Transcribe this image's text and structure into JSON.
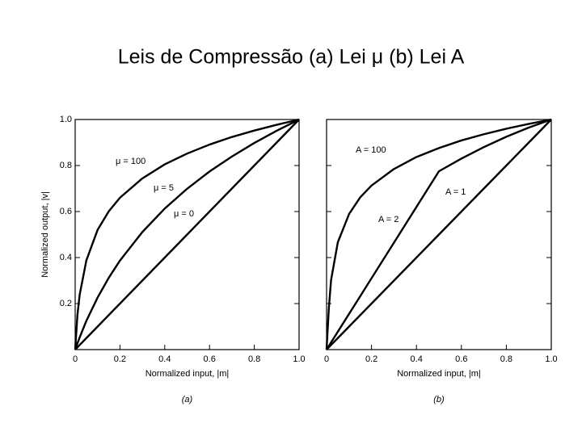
{
  "title": "Leis de Compressão (a) Lei μ  (b) Lei A",
  "chart_data": [
    {
      "type": "line",
      "caption": "(a)",
      "xlabel": "Normalized input, |m|",
      "ylabel": "Normalized output, |v|",
      "x": [
        0,
        0.01,
        0.02,
        0.05,
        0.1,
        0.15,
        0.2,
        0.3,
        0.4,
        0.5,
        0.6,
        0.7,
        0.8,
        0.9,
        1
      ],
      "series": [
        {
          "name": "μ = 100",
          "color": "#000000",
          "values": [
            0,
            0.15,
            0.238,
            0.388,
            0.52,
            0.601,
            0.66,
            0.744,
            0.805,
            0.852,
            0.891,
            0.924,
            0.952,
            0.977,
            1
          ]
        },
        {
          "name": "μ = 5",
          "color": "#000000",
          "values": [
            0,
            0.027,
            0.053,
            0.125,
            0.226,
            0.312,
            0.387,
            0.511,
            0.613,
            0.699,
            0.774,
            0.839,
            0.898,
            0.951,
            1
          ]
        },
        {
          "name": "μ = 0",
          "color": "#000000",
          "values": [
            0,
            0.01,
            0.02,
            0.05,
            0.1,
            0.15,
            0.2,
            0.3,
            0.4,
            0.5,
            0.6,
            0.7,
            0.8,
            0.9,
            1
          ]
        }
      ],
      "xlim": [
        0,
        1
      ],
      "ylim": [
        0,
        1
      ],
      "xticks": [
        0,
        0.2,
        0.4,
        0.6,
        0.8,
        {
          "value": 1,
          "label": "1.0"
        }
      ],
      "yticks": [
        0.2,
        0.4,
        0.6,
        0.8,
        {
          "value": 1,
          "label": "1.0"
        }
      ],
      "ytick_labels": true
    },
    {
      "type": "line",
      "caption": "(b)",
      "xlabel": "Normalized input, |m|",
      "x": [
        0,
        0.01,
        0.02,
        0.05,
        0.1,
        0.15,
        0.2,
        0.3,
        0.4,
        0.5,
        0.6,
        0.7,
        0.8,
        0.9,
        1
      ],
      "series": [
        {
          "name": "A = 100",
          "color": "#000000",
          "values": [
            0,
            0.178,
            0.302,
            0.466,
            0.589,
            0.662,
            0.713,
            0.785,
            0.837,
            0.876,
            0.909,
            0.936,
            0.96,
            0.981,
            1
          ]
        },
        {
          "name": "A = 1",
          "color": "#000000",
          "values": [
            0,
            0.01,
            0.02,
            0.05,
            0.1,
            0.15,
            0.2,
            0.3,
            0.4,
            0.5,
            0.6,
            0.7,
            0.8,
            0.9,
            1
          ]
        },
        {
          "name": "A = 2",
          "color": "#000000",
          "values": [
            0,
            0.0155,
            0.031,
            0.0775,
            0.155,
            0.2325,
            0.31,
            0.465,
            0.62,
            0.775,
            0.83,
            0.88,
            0.925,
            0.965,
            1
          ]
        }
      ],
      "xlim": [
        0,
        1
      ],
      "ylim": [
        0,
        1
      ],
      "xticks": [
        0,
        0.2,
        0.4,
        0.6,
        0.8,
        {
          "value": 1,
          "label": "1.0"
        }
      ],
      "yticks": [
        0.2,
        0.4,
        0.6,
        0.8,
        1
      ],
      "ytick_labels": false
    }
  ]
}
